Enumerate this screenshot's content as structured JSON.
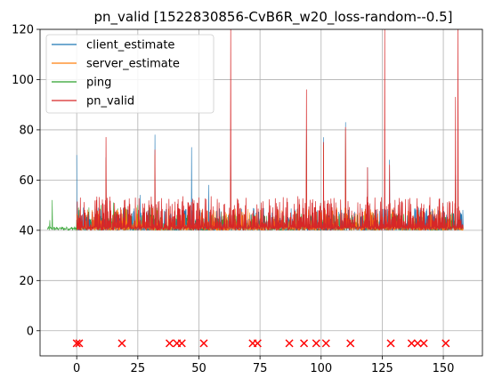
{
  "chart_data": {
    "type": "line",
    "title": "pn_valid [1522830856-CvB6R_w20_loss-random--0.5]",
    "xlabel": "",
    "ylabel": "",
    "xlim": [
      -15,
      166
    ],
    "ylim": [
      -10,
      120
    ],
    "xticks": [
      0,
      25,
      50,
      75,
      100,
      125,
      150
    ],
    "yticks": [
      0,
      20,
      40,
      60,
      80,
      100,
      120
    ],
    "grid": true,
    "legend_position": "top-left",
    "baseline": 40,
    "series": [
      {
        "name": "client_estimate",
        "color": "#1f77b4",
        "x_range": [
          0,
          158
        ],
        "spikes": [
          [
            0,
            70
          ],
          [
            12,
            69
          ],
          [
            26,
            54
          ],
          [
            32,
            78
          ],
          [
            47,
            73
          ],
          [
            54,
            58
          ],
          [
            63,
            70
          ],
          [
            94,
            80
          ],
          [
            101,
            77
          ],
          [
            110,
            83
          ],
          [
            119,
            65
          ],
          [
            128,
            68
          ],
          [
            155,
            62
          ],
          [
            157,
            47
          ]
        ]
      },
      {
        "name": "server_estimate",
        "color": "#ff7f0e",
        "x_range": [
          0,
          158
        ],
        "spikes": [
          [
            12,
            68
          ],
          [
            32,
            70
          ],
          [
            63,
            66
          ],
          [
            94,
            78
          ],
          [
            101,
            74
          ],
          [
            110,
            80
          ],
          [
            155,
            60
          ]
        ]
      },
      {
        "name": "ping",
        "color": "#2ca02c",
        "x_range": [
          -12,
          158
        ],
        "spikes": [
          [
            -11,
            44
          ],
          [
            -10,
            52
          ],
          [
            -7,
            41
          ],
          [
            -4,
            41
          ],
          [
            5,
            49
          ],
          [
            10,
            50
          ],
          [
            15,
            51
          ],
          [
            20,
            49
          ],
          [
            25,
            50
          ],
          [
            30,
            49
          ]
        ]
      },
      {
        "name": "pn_valid",
        "color": "#d62728",
        "x_range": [
          0,
          158
        ],
        "spikes": [
          [
            12,
            77
          ],
          [
            32,
            72
          ],
          [
            63,
            120
          ],
          [
            94,
            96
          ],
          [
            101,
            75
          ],
          [
            110,
            81
          ],
          [
            119,
            65
          ],
          [
            126,
            120
          ],
          [
            128,
            66
          ],
          [
            155,
            93
          ],
          [
            156,
            120
          ]
        ]
      }
    ],
    "loss_markers": {
      "color": "#ff0000",
      "y": -5,
      "x": [
        0,
        1,
        18.5,
        38,
        41,
        43,
        52,
        72,
        74,
        87,
        93,
        98,
        102,
        112,
        128.5,
        137,
        139.5,
        142,
        151
      ]
    }
  }
}
